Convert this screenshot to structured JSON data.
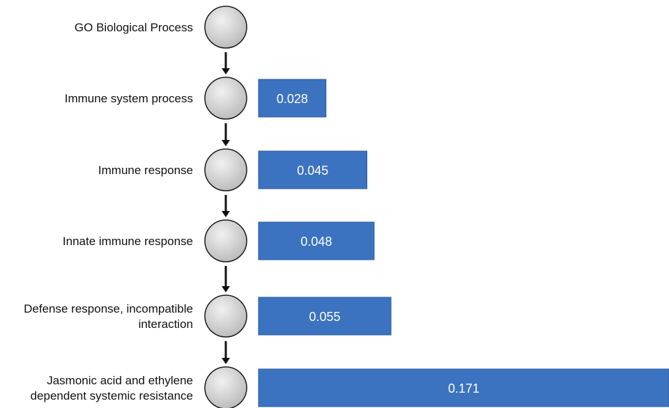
{
  "colors": {
    "bar_fill": "#3c73c0",
    "bar_stroke": "#2a5a9e",
    "node_fill_light": "#f1f1f1",
    "node_fill_dark": "#b9b9b9",
    "node_stroke": "#1a1a1a",
    "arrow": "#111111",
    "label_text": "#111111",
    "bar_text": "#ffffff"
  },
  "chart_data": {
    "type": "bar",
    "orientation": "horizontal",
    "categories": [
      "Immune system process",
      "Immune response",
      "Innate immune response",
      "Defense response, incompatible interaction",
      "Jasmonic acid and ethylene dependent systemic resistance"
    ],
    "values": [
      0.028,
      0.045,
      0.048,
      0.055,
      0.171
    ],
    "value_labels": [
      "0.028",
      "0.045",
      "0.048",
      "0.055",
      "0.171"
    ]
  },
  "nodes": [
    {
      "lines": [
        "GO Biological Process"
      ]
    },
    {
      "lines": [
        "Immune system process"
      ]
    },
    {
      "lines": [
        "Immune response"
      ]
    },
    {
      "lines": [
        "Innate immune response"
      ]
    },
    {
      "lines": [
        "Defense response, incompatible",
        "interaction"
      ]
    },
    {
      "lines": [
        "Jasmonic acid and ethylene",
        "dependent systemic resistance"
      ]
    }
  ]
}
